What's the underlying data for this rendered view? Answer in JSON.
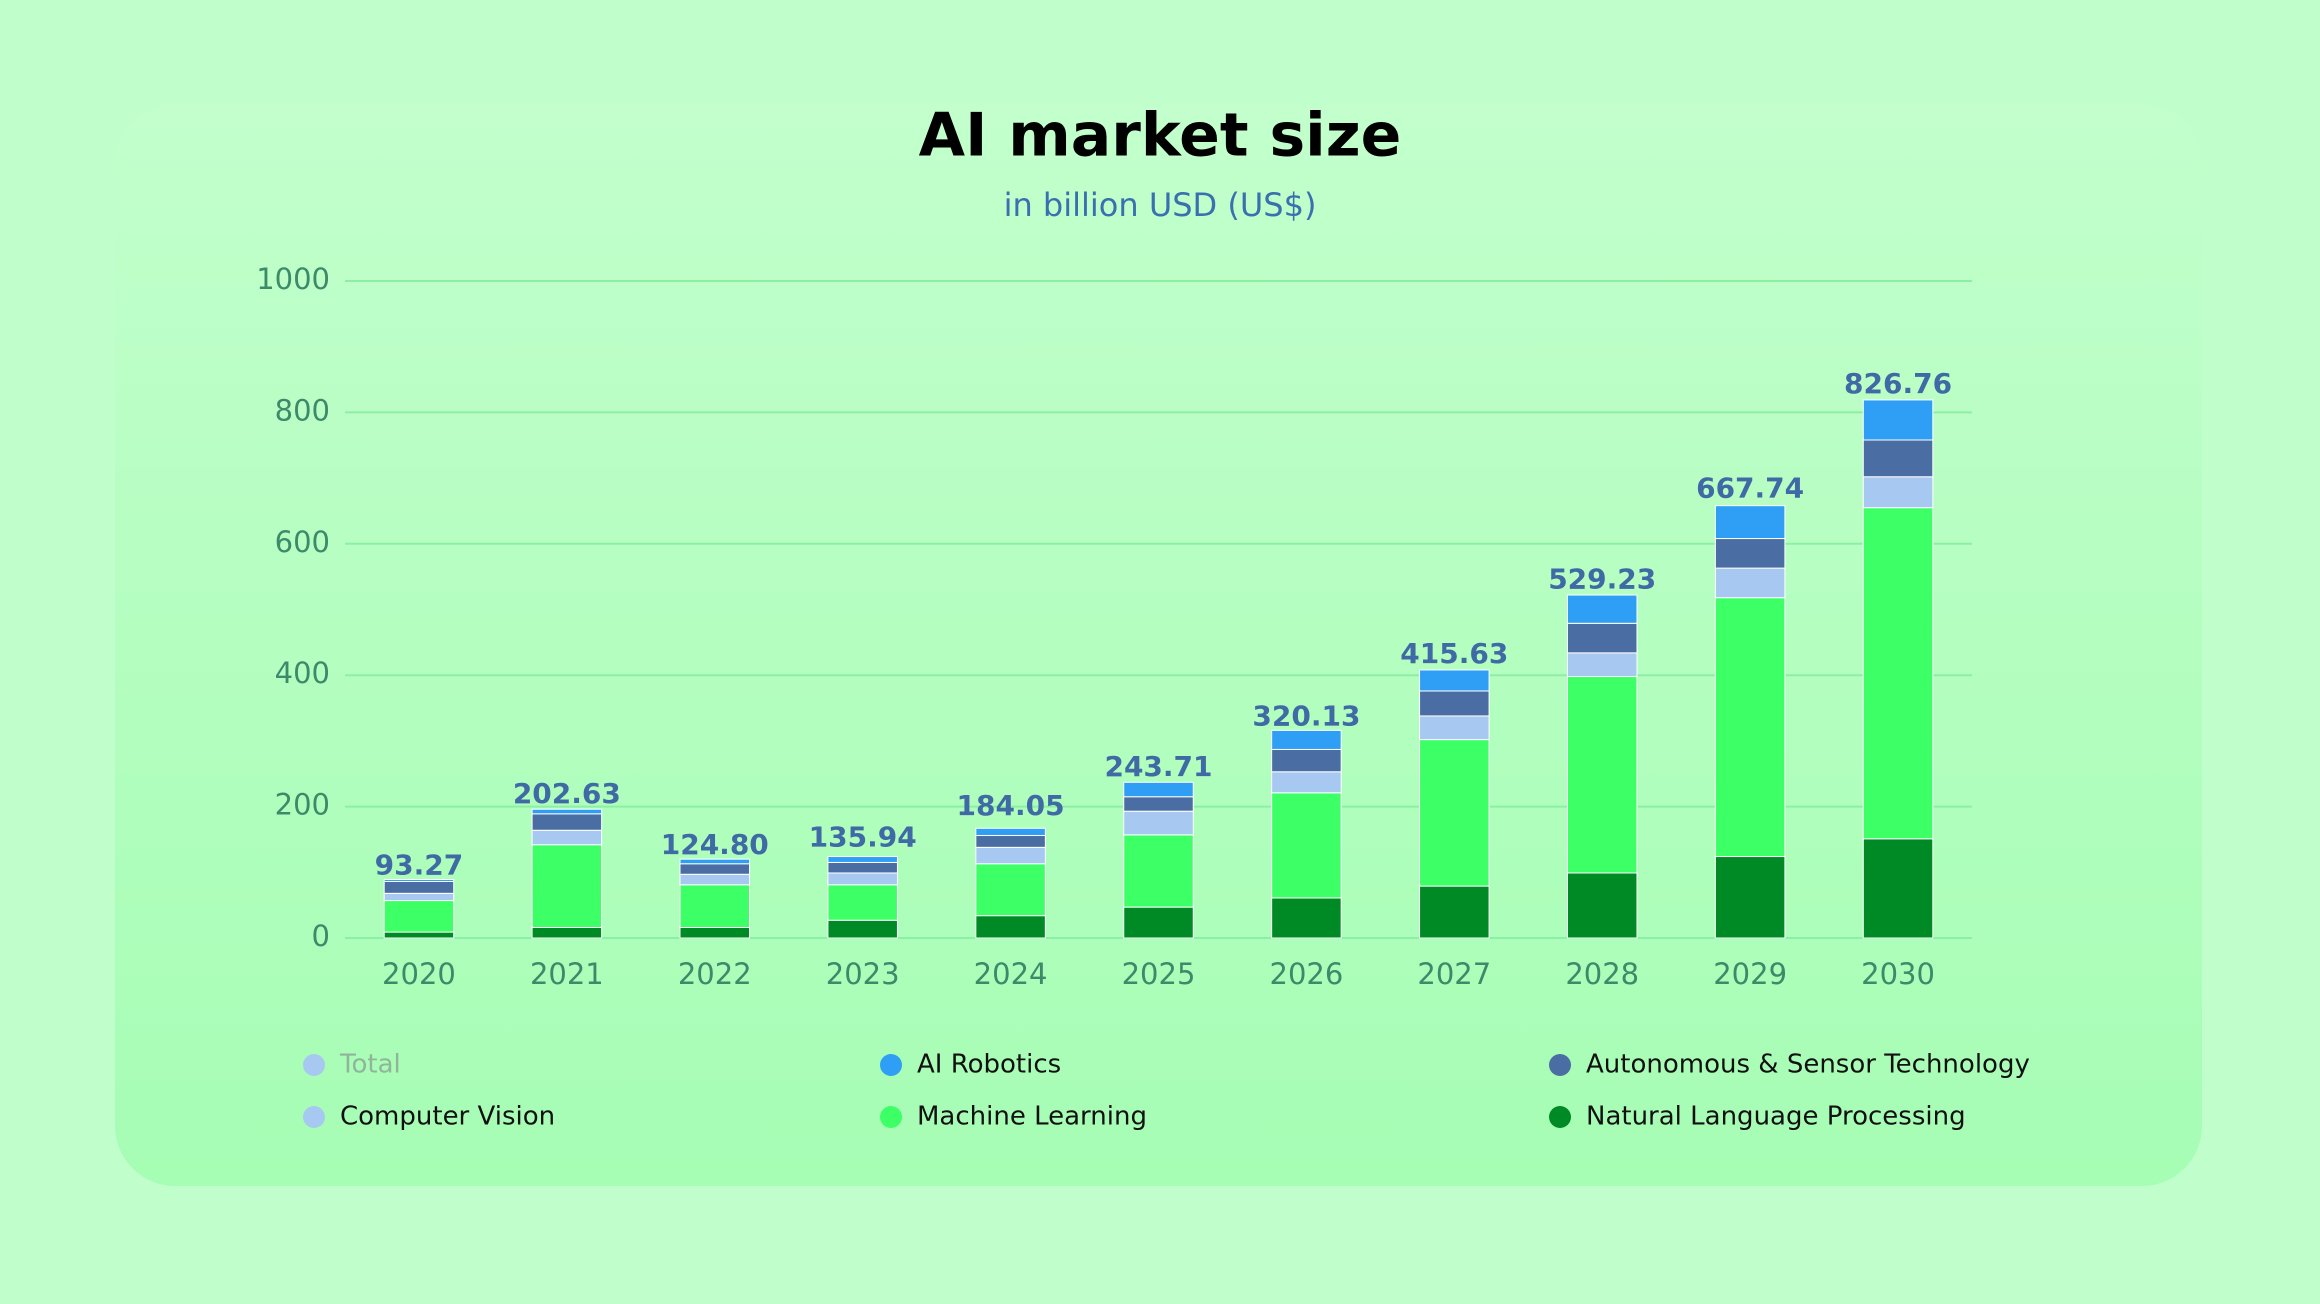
{
  "chart_data": {
    "type": "stacked_bar",
    "title": "AI market size",
    "subtitle": "in billion USD (US$)",
    "categories": [
      "2020",
      "2021",
      "2022",
      "2023",
      "2024",
      "2025",
      "2026",
      "2027",
      "2028",
      "2029",
      "2030"
    ],
    "series": [
      {
        "name": "Total",
        "color": "#a7c8f0",
        "visible": false,
        "values": [
          93.27,
          202.63,
          124.8,
          135.94,
          184.05,
          243.71,
          320.13,
          415.63,
          529.23,
          667.74,
          826.76
        ],
        "value_labels": [
          "93.27",
          "202.63",
          "124.80",
          "135.94",
          "184.05",
          "243.71",
          "320.13",
          "415.63",
          "529.23",
          "667.74",
          "826.76"
        ]
      },
      {
        "name": "AI Robotics",
        "color": "#2e9ff5",
        "values": [
          3,
          7,
          7,
          9,
          11,
          22,
          29,
          32,
          43,
          50,
          61
        ]
      },
      {
        "name": "Autonomous & Sensor Technology",
        "color": "#4a6da3",
        "values": [
          18,
          25,
          16,
          16,
          18,
          22,
          34,
          38,
          45,
          45,
          56
        ]
      },
      {
        "name": "Computer Vision",
        "color": "#a7c8f0",
        "values": [
          11,
          22,
          16,
          18,
          25,
          36,
          32,
          36,
          36,
          45,
          47
        ]
      },
      {
        "name": "Machine Learning",
        "color": "#3dff66",
        "values": [
          48,
          126,
          65,
          54,
          79,
          110,
          160,
          223,
          299,
          394,
          504
        ]
      },
      {
        "name": "Natural Language Processing",
        "color": "#008a25",
        "values": [
          9,
          16,
          16,
          27,
          34,
          47,
          61,
          79,
          99,
          124,
          151
        ]
      }
    ],
    "ylim": [
      0,
      1000
    ],
    "yticks": [
      0,
      200,
      400,
      600,
      800,
      1000
    ],
    "grid": true
  }
}
